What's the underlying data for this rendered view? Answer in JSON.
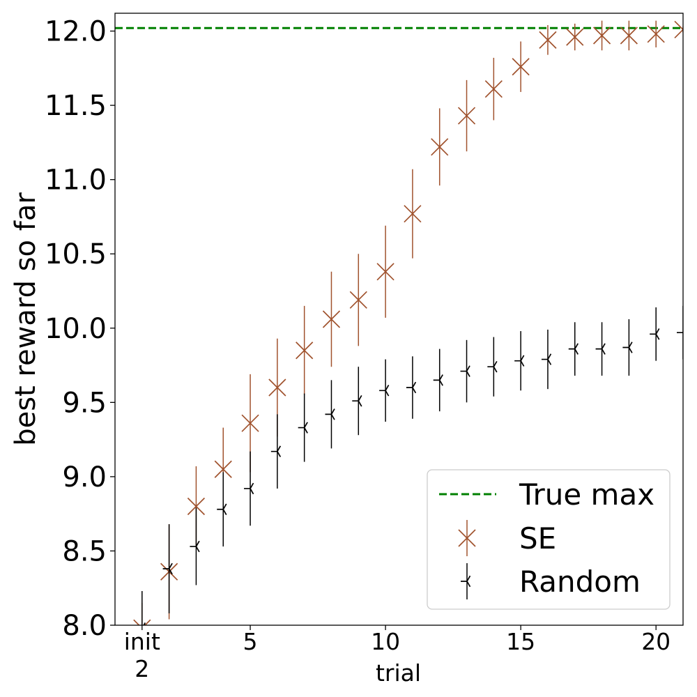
{
  "chart_data": {
    "type": "scatter",
    "xlabel": "trial",
    "ylabel": "best reward so far",
    "xlim": [
      0,
      21
    ],
    "ylim": [
      8.0,
      12.12
    ],
    "xticks": [
      {
        "value": 1,
        "label": "init",
        "sublabel": "2"
      },
      {
        "value": 5,
        "label": "5"
      },
      {
        "value": 10,
        "label": "10"
      },
      {
        "value": 15,
        "label": "15"
      },
      {
        "value": 20,
        "label": "20"
      }
    ],
    "yticks": [
      {
        "value": 8.0,
        "label": "8.0"
      },
      {
        "value": 8.5,
        "label": "8.5"
      },
      {
        "value": 9.0,
        "label": "9.0"
      },
      {
        "value": 9.5,
        "label": "9.5"
      },
      {
        "value": 10.0,
        "label": "10.0"
      },
      {
        "value": 10.5,
        "label": "10.5"
      },
      {
        "value": 11.0,
        "label": "11.0"
      },
      {
        "value": 11.5,
        "label": "11.5"
      },
      {
        "value": 12.0,
        "label": "12.0"
      }
    ],
    "true_max": {
      "name": "True max",
      "value": 12.02,
      "color": "#008000"
    },
    "legend_position": "lower-right",
    "series": [
      {
        "name": "SE",
        "marker": "x",
        "color": "#a0522d",
        "x": [
          1,
          2,
          3,
          4,
          5,
          6,
          7,
          8,
          9,
          10,
          11,
          12,
          13,
          14,
          15,
          16,
          17,
          18,
          19,
          20,
          21
        ],
        "y": [
          7.98,
          8.36,
          8.8,
          9.05,
          9.36,
          9.6,
          9.85,
          10.06,
          10.19,
          10.38,
          10.77,
          11.22,
          11.43,
          11.61,
          11.76,
          11.94,
          11.96,
          11.97,
          11.97,
          11.98,
          12.01
        ],
        "err": [
          0.17,
          0.32,
          0.27,
          0.28,
          0.33,
          0.33,
          0.3,
          0.32,
          0.31,
          0.31,
          0.3,
          0.26,
          0.24,
          0.21,
          0.17,
          0.1,
          0.09,
          0.1,
          0.1,
          0.09,
          0.02
        ]
      },
      {
        "name": "Random",
        "marker": "tri",
        "color": "#000000",
        "x": [
          1,
          2,
          3,
          4,
          5,
          6,
          7,
          8,
          9,
          10,
          11,
          12,
          13,
          14,
          15,
          16,
          17,
          18,
          19,
          20,
          21
        ],
        "y": [
          7.98,
          8.38,
          8.53,
          8.78,
          8.92,
          9.17,
          9.33,
          9.42,
          9.51,
          9.58,
          9.6,
          9.65,
          9.71,
          9.74,
          9.78,
          9.79,
          9.86,
          9.86,
          9.87,
          9.96,
          9.97
        ],
        "err": [
          0.25,
          0.3,
          0.26,
          0.25,
          0.25,
          0.25,
          0.23,
          0.23,
          0.23,
          0.21,
          0.21,
          0.21,
          0.21,
          0.2,
          0.2,
          0.2,
          0.18,
          0.18,
          0.19,
          0.18,
          0.18
        ]
      }
    ]
  }
}
